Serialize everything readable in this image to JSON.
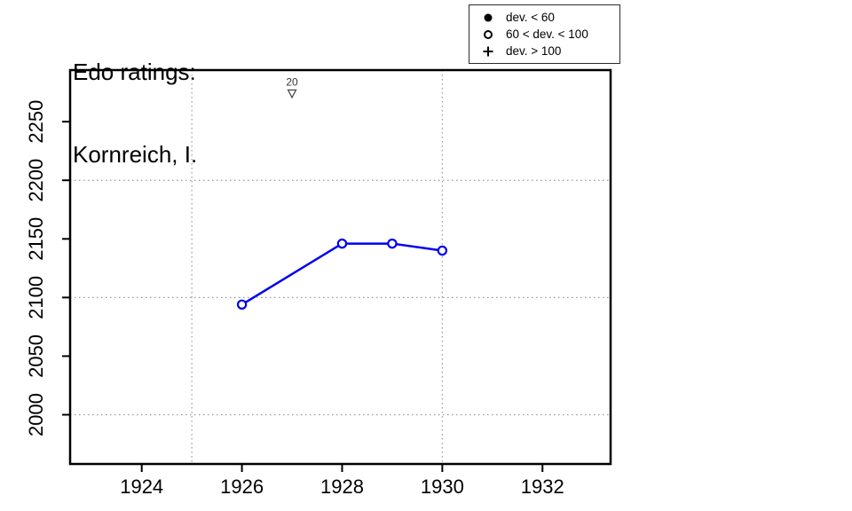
{
  "chart_data": {
    "type": "line",
    "title_line1": "Edo ratings:",
    "title_line2": "Kornreich, I.",
    "x_range": [
      1922.57,
      1933.36
    ],
    "y_range": [
      1958,
      2294
    ],
    "x_ticks": [
      1924,
      1926,
      1928,
      1930,
      1932
    ],
    "y_ticks": [
      2000,
      2050,
      2100,
      2150,
      2200,
      2250
    ],
    "x_gridlines": [
      1925,
      1930
    ],
    "y_gridlines": [
      2000,
      2100,
      2200
    ],
    "grid_style": "dotted",
    "grid_color": "#999999",
    "axis_color": "#000000",
    "series": [
      {
        "name": "Edo rating",
        "x": [
          1926,
          1928,
          1929,
          1930
        ],
        "y": [
          2094,
          2146,
          2146,
          2140
        ],
        "color": "#0000EE",
        "marker": "open-circle",
        "line_width": 2.5
      }
    ],
    "annotations": [
      {
        "x": 1927,
        "y": 2274,
        "label": "20",
        "marker": "open-triangle-down",
        "color": "#4d4d4d"
      }
    ],
    "legend": {
      "position": "top-right",
      "items": [
        {
          "symbol": "filled-circle",
          "label": "dev. < 60"
        },
        {
          "symbol": "open-circle",
          "label": "60 < dev. < 100"
        },
        {
          "symbol": "plus",
          "label": "dev. > 100"
        }
      ]
    }
  }
}
